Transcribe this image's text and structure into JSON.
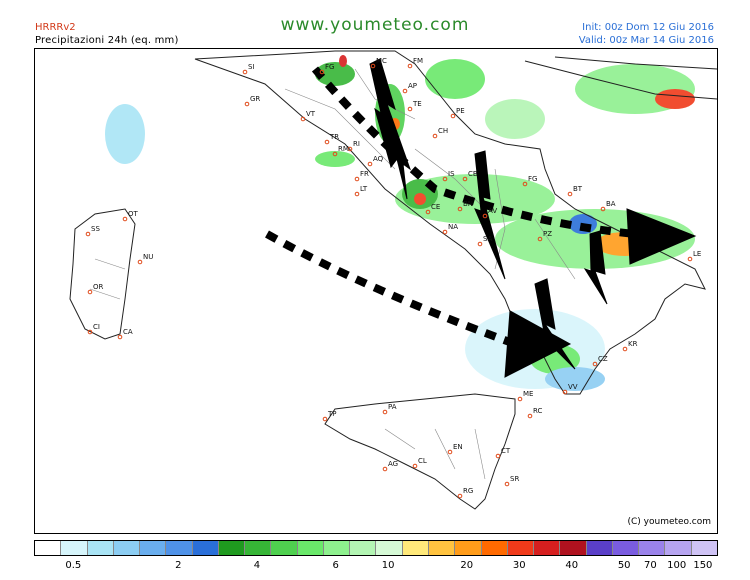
{
  "header": {
    "model": "HRRRv2",
    "product": "Precipitazioni 24h (eq. mm)",
    "website": "www.youmeteo.com",
    "init": "Init: 00z Dom 12 Giu 2016",
    "valid": "Valid: 00z Mar 14 Giu 2016"
  },
  "map": {
    "copyright": "(C) youmeteo.com",
    "cities": [
      {
        "code": "SI"
      },
      {
        "code": "GR"
      },
      {
        "code": "FG"
      },
      {
        "code": "MC"
      },
      {
        "code": "FM"
      },
      {
        "code": "AP"
      },
      {
        "code": "TE"
      },
      {
        "code": "PE"
      },
      {
        "code": "CH"
      },
      {
        "code": "VT"
      },
      {
        "code": "TR"
      },
      {
        "code": "RI"
      },
      {
        "code": "AQ"
      },
      {
        "code": "RM"
      },
      {
        "code": "FR"
      },
      {
        "code": "LT"
      },
      {
        "code": "IS"
      },
      {
        "code": "CB"
      },
      {
        "code": "FG"
      },
      {
        "code": "CE"
      },
      {
        "code": "BN"
      },
      {
        "code": "AV"
      },
      {
        "code": "NA"
      },
      {
        "code": "SA"
      },
      {
        "code": "PZ"
      },
      {
        "code": "BT"
      },
      {
        "code": "BA"
      },
      {
        "code": "LE"
      },
      {
        "code": "OT"
      },
      {
        "code": "SS"
      },
      {
        "code": "NU"
      },
      {
        "code": "OR"
      },
      {
        "code": "CI"
      },
      {
        "code": "CA"
      },
      {
        "code": "KR"
      },
      {
        "code": "CZ"
      },
      {
        "code": "VV"
      },
      {
        "code": "ME"
      },
      {
        "code": "RC"
      },
      {
        "code": "TP"
      },
      {
        "code": "PA"
      },
      {
        "code": "EN"
      },
      {
        "code": "CL"
      },
      {
        "code": "AG"
      },
      {
        "code": "CT"
      },
      {
        "code": "SR"
      },
      {
        "code": "RG"
      }
    ]
  },
  "legend": {
    "colors": [
      "#ffffff",
      "#d6f5fb",
      "#a9e4f5",
      "#8ccdf2",
      "#6aaeee",
      "#4f92e8",
      "#2a6fd9",
      "#1f9a1f",
      "#36b536",
      "#4fd04f",
      "#6ae86a",
      "#8ef08e",
      "#b3f5b3",
      "#d6fad6",
      "#ffe97a",
      "#ffc340",
      "#ff9c1a",
      "#ff6a00",
      "#f03a1a",
      "#d61f1f",
      "#b0121f",
      "#5a3fc8",
      "#7a5ce0",
      "#9a82ea",
      "#b6a4f0",
      "#cfc3f5"
    ],
    "tick_labels": [
      "0.5",
      "2",
      "4",
      "6",
      "10",
      "20",
      "30",
      "40",
      "50",
      "70",
      "100",
      "150"
    ]
  }
}
